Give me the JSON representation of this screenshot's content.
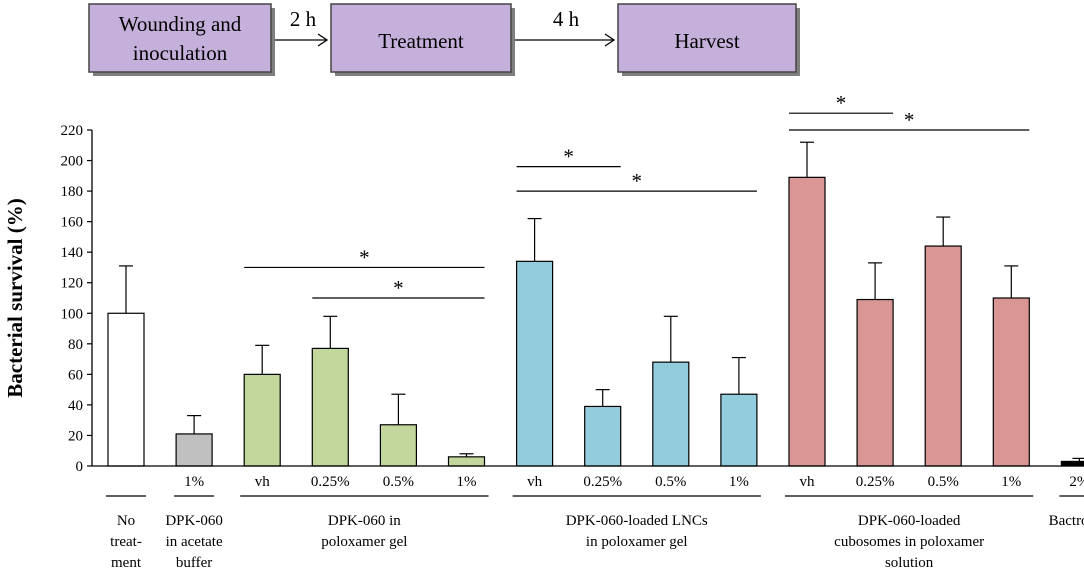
{
  "flow": {
    "steps": [
      "Wounding and inoculation",
      "Treatment",
      "Harvest"
    ],
    "step_lines": [
      [
        "Wounding and",
        "inoculation"
      ],
      [
        "Treatment"
      ],
      [
        "Harvest"
      ]
    ],
    "arrows": [
      "2 h",
      "4 h"
    ],
    "colors": {
      "fill": "#c5b0dc",
      "border": "#444444"
    }
  },
  "chart_data": {
    "type": "bar",
    "ylabel": "Bacterial survival  (%)",
    "ylim": [
      0,
      220
    ],
    "yticks": [
      0,
      20,
      40,
      60,
      80,
      100,
      120,
      140,
      160,
      180,
      200,
      220
    ],
    "bars": [
      {
        "label": "",
        "value": 100,
        "error": 31,
        "color": "#ffffff"
      },
      {
        "label": "1%",
        "value": 21,
        "error": 12,
        "color": "#c0c0c0"
      },
      {
        "label": "vh",
        "value": 60,
        "error": 19,
        "color": "#c3d69b"
      },
      {
        "label": "0.25%",
        "value": 77,
        "error": 21,
        "color": "#c3d69b"
      },
      {
        "label": "0.5%",
        "value": 27,
        "error": 20,
        "color": "#c3d69b"
      },
      {
        "label": "1%",
        "value": 6,
        "error": 2,
        "color": "#c3d69b"
      },
      {
        "label": "vh",
        "value": 134,
        "error": 28,
        "color": "#93cddd"
      },
      {
        "label": "0.25%",
        "value": 39,
        "error": 11,
        "color": "#93cddd"
      },
      {
        "label": "0.5%",
        "value": 68,
        "error": 30,
        "color": "#93cddd"
      },
      {
        "label": "1%",
        "value": 47,
        "error": 24,
        "color": "#93cddd"
      },
      {
        "label": "vh",
        "value": 189,
        "error": 23,
        "color": "#d99694"
      },
      {
        "label": "0.25%",
        "value": 109,
        "error": 24,
        "color": "#d99694"
      },
      {
        "label": "0.5%",
        "value": 144,
        "error": 19,
        "color": "#d99694"
      },
      {
        "label": "1%",
        "value": 110,
        "error": 21,
        "color": "#d99694"
      },
      {
        "label": "2%",
        "value": 3,
        "error": 2,
        "color": "#000000"
      }
    ],
    "groups": [
      {
        "lines": [
          "No",
          "treat-",
          "ment"
        ],
        "bars": [
          0,
          0
        ]
      },
      {
        "lines": [
          "DPK-060",
          "in acetate",
          "buffer"
        ],
        "bars": [
          1,
          1
        ]
      },
      {
        "lines": [
          "DPK-060 in",
          "poloxamer gel"
        ],
        "bars": [
          2,
          5
        ]
      },
      {
        "lines": [
          "DPK-060-loaded LNCs",
          "in poloxamer gel"
        ],
        "bars": [
          6,
          9
        ]
      },
      {
        "lines": [
          "DPK-060-loaded",
          "cubosomes in poloxamer",
          "solution"
        ],
        "bars": [
          10,
          13
        ]
      },
      {
        "lines": [
          "Bactroban"
        ],
        "bars": [
          14,
          14
        ]
      }
    ],
    "significance": [
      {
        "from": 2,
        "to": 5,
        "level": 110,
        "label": "*"
      },
      {
        "from": 3,
        "to": 5,
        "level": 110,
        "label": "*"
      },
      {
        "from": 6,
        "to": 7,
        "level": 198,
        "label": "*"
      },
      {
        "from": 6,
        "to": 9,
        "level": 198,
        "label": "*"
      },
      {
        "from": 10,
        "to": 11,
        "level": 233,
        "label": "*"
      },
      {
        "from": 10,
        "to": 13,
        "level": 233,
        "label": "*"
      }
    ]
  }
}
